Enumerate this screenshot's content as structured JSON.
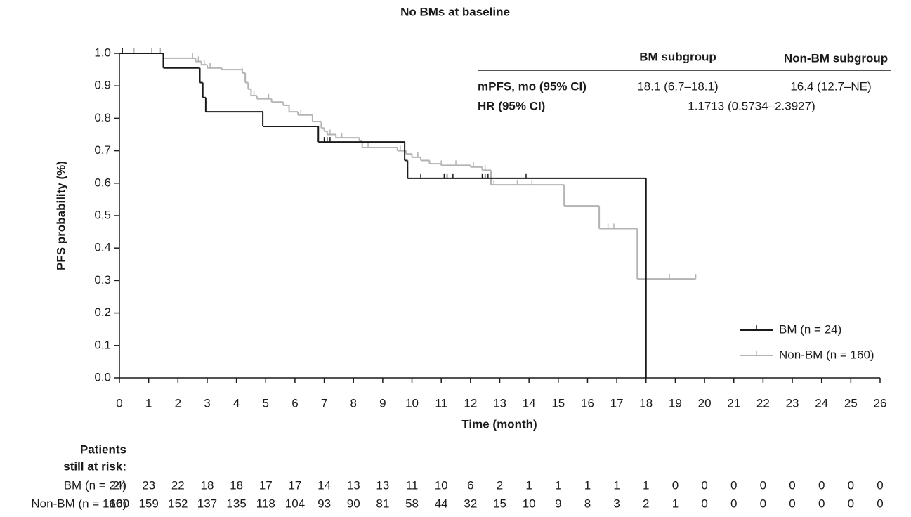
{
  "chart_data": {
    "type": "km",
    "title": "No BMs at baseline",
    "x_label": "Time (month)",
    "y_label": "PFS probability (%)",
    "xlim": [
      0,
      26
    ],
    "xticks": [
      0,
      1,
      2,
      3,
      4,
      5,
      6,
      7,
      8,
      9,
      10,
      11,
      12,
      13,
      14,
      15,
      16,
      17,
      18,
      19,
      20,
      21,
      22,
      23,
      24,
      25,
      26
    ],
    "ylim": [
      0,
      1
    ],
    "yticks": [
      {
        "value": 0,
        "label": "0.0"
      },
      {
        "value": 0.1,
        "label": "0.1"
      },
      {
        "value": 0.2,
        "label": "0.2"
      },
      {
        "value": 0.3,
        "label": "0.3"
      },
      {
        "value": 0.4,
        "label": "0.4"
      },
      {
        "value": 0.5,
        "label": "0.5"
      },
      {
        "value": 0.6,
        "label": "0.6"
      },
      {
        "value": 0.7,
        "label": "0.7"
      },
      {
        "value": 0.8,
        "label": "0.8"
      },
      {
        "value": 0.9,
        "label": "0.9"
      },
      {
        "value": 1,
        "label": "1.0"
      }
    ],
    "legend_position": "lower right",
    "series": [
      {
        "name": "BM (n = 24)",
        "color": "#1a1a1a",
        "x": [
          0,
          1.5,
          2.75,
          2.85,
          2.95,
          4.9,
          6.8,
          9.75,
          9.85,
          18
        ],
        "values": [
          1,
          0.955,
          0.91,
          0.864,
          0.82,
          0.775,
          0.727,
          0.67,
          0.615,
          0
        ],
        "censor_times": [
          0.1,
          7.0,
          7.1,
          7.2,
          10.3,
          11.1,
          11.2,
          11.4,
          12.4,
          12.5,
          12.6,
          13.9
        ]
      },
      {
        "name": "Non-BM (n = 160)",
        "color": "#b3b3b3",
        "x": [
          0,
          1.5,
          2.6,
          2.8,
          3.0,
          3.5,
          4.2,
          4.3,
          4.4,
          4.5,
          4.7,
          5.2,
          5.6,
          5.8,
          6.1,
          6.6,
          6.9,
          7.0,
          7.1,
          7.4,
          8.2,
          8.3,
          9.5,
          9.8,
          10.0,
          10.3,
          10.6,
          11.0,
          12.0,
          12.4,
          12.7,
          15.2,
          16.4,
          17.7,
          19.7
        ],
        "values": [
          1.0,
          0.985,
          0.975,
          0.965,
          0.955,
          0.95,
          0.94,
          0.91,
          0.89,
          0.87,
          0.86,
          0.85,
          0.84,
          0.82,
          0.81,
          0.79,
          0.77,
          0.76,
          0.75,
          0.74,
          0.73,
          0.71,
          0.7,
          0.69,
          0.68,
          0.67,
          0.66,
          0.655,
          0.65,
          0.64,
          0.595,
          0.53,
          0.46,
          0.305,
          0.305
        ],
        "censor_times": [
          0.5,
          1.1,
          1.4,
          2.5,
          2.7,
          2.9,
          3.1,
          4.2,
          4.6,
          5.1,
          6.2,
          7.2,
          7.6,
          8.5,
          9.6,
          10.2,
          11.0,
          11.5,
          12.1,
          12.5,
          12.8,
          13.6,
          14.1,
          16.7,
          16.9,
          18.8,
          19.7
        ]
      }
    ],
    "stats_table": {
      "columns": [
        "BM subgroup",
        "Non-BM subgroup"
      ],
      "rows": [
        {
          "label": "mPFS, mo (95% CI)",
          "cells": [
            "18.1 (6.7–18.1)",
            "16.4 (12.7–NE)"
          ]
        },
        {
          "label": "HR (95% CI)",
          "cells": [
            "1.1713 (0.5734–2.3927)"
          ]
        }
      ]
    },
    "risk_table": {
      "title_lines": [
        "Patients",
        "still at risk:"
      ],
      "rows": [
        {
          "label": "BM (n = 24)",
          "values": [
            24,
            23,
            22,
            18,
            18,
            17,
            17,
            14,
            13,
            13,
            11,
            10,
            6,
            2,
            1,
            1,
            1,
            1,
            1,
            0,
            0,
            0,
            0,
            0,
            0,
            0,
            0
          ]
        },
        {
          "label": "Non-BM (n = 160)",
          "values": [
            160,
            159,
            152,
            137,
            135,
            118,
            104,
            93,
            90,
            81,
            58,
            44,
            32,
            15,
            10,
            9,
            8,
            3,
            2,
            1,
            0,
            0,
            0,
            0,
            0,
            0,
            0
          ]
        }
      ]
    }
  }
}
